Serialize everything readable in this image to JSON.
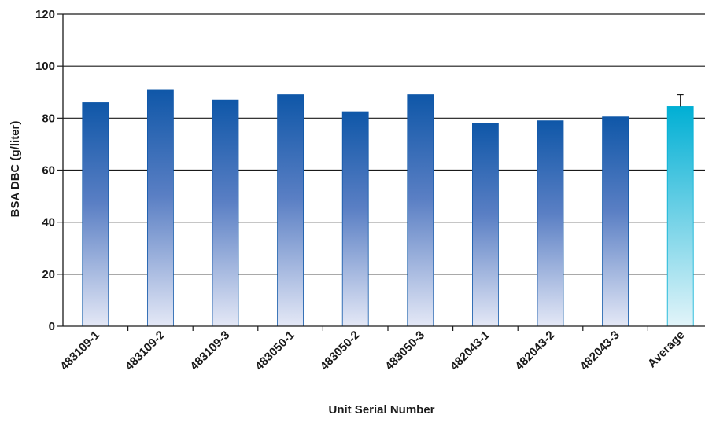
{
  "chart_data": {
    "type": "bar",
    "title": "",
    "xlabel": "Unit Serial Number",
    "ylabel": "BSA DBC (g/liter)",
    "ylim": [
      0,
      120
    ],
    "yticks": [
      0,
      20,
      40,
      60,
      80,
      100,
      120
    ],
    "grid": true,
    "categories": [
      "483109-1",
      "483109-2",
      "483109-3",
      "483050-1",
      "483050-2",
      "483050-3",
      "482043-1",
      "482043-2",
      "482043-3",
      "Average"
    ],
    "values": [
      86,
      91,
      87,
      89,
      82.5,
      89,
      78,
      79,
      80.5,
      84.5
    ],
    "error": {
      "category": "Average",
      "plus": 4.5
    },
    "colors": {
      "bar_top": "#0f57a8",
      "bar_mid": "#5a7fc4",
      "bar_bottom": "#e4e8f6",
      "highlight_top": "#00afd4",
      "highlight_bottom": "#e2f4f9",
      "axis": "#1a1a1a"
    }
  }
}
